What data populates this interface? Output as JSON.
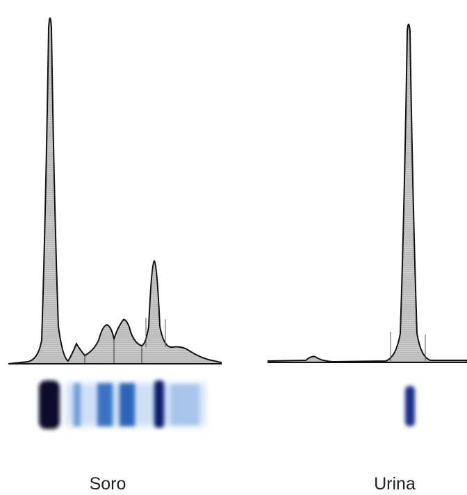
{
  "panels": [
    {
      "label": "Soro"
    },
    {
      "label": "Urina"
    }
  ]
}
